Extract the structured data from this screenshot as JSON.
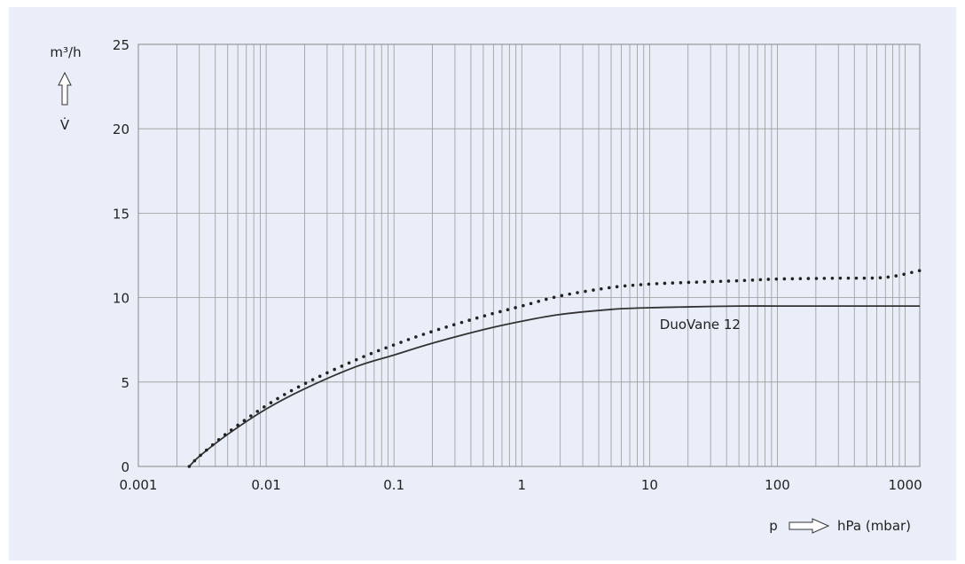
{
  "chart_data": {
    "type": "line",
    "x_scale": "log",
    "xlim": [
      0.001,
      1300
    ],
    "ylim": [
      0,
      25
    ],
    "xtick_labels": [
      "0.001",
      "0.01",
      "0.1",
      "1",
      "10",
      "100",
      "1000"
    ],
    "xtick_values": [
      0.001,
      0.01,
      0.1,
      1,
      10,
      100,
      1000
    ],
    "ytick_labels": [
      "0",
      "5",
      "10",
      "15",
      "20",
      "25"
    ],
    "ytick_values": [
      0,
      5,
      10,
      15,
      20,
      25
    ],
    "ylabel_unit": "m³/h",
    "ylabel_symbol": "V̇",
    "xlabel_symbol": "p",
    "xlabel_unit": "hPa (mbar)",
    "grid": true,
    "series": [
      {
        "name": "DuoVane 12",
        "style": "solid",
        "color": "#333333",
        "x": [
          0.0025,
          0.003,
          0.005,
          0.01,
          0.02,
          0.05,
          0.1,
          0.2,
          0.5,
          1,
          2,
          5,
          10,
          20,
          50,
          100,
          300,
          1300
        ],
        "y": [
          0,
          0.6,
          1.9,
          3.4,
          4.6,
          5.9,
          6.6,
          7.3,
          8.1,
          8.6,
          9.0,
          9.3,
          9.4,
          9.45,
          9.5,
          9.5,
          9.5,
          9.5
        ]
      },
      {
        "name": "",
        "style": "dotted",
        "color": "#222222",
        "x": [
          0.0025,
          0.003,
          0.005,
          0.01,
          0.02,
          0.05,
          0.1,
          0.2,
          0.5,
          1,
          2,
          5,
          10,
          20,
          50,
          100,
          300,
          700,
          1300
        ],
        "y": [
          0,
          0.6,
          2.0,
          3.6,
          4.9,
          6.3,
          7.2,
          8.0,
          8.9,
          9.5,
          10.1,
          10.6,
          10.8,
          10.9,
          11.0,
          11.1,
          11.15,
          11.2,
          11.6
        ]
      }
    ],
    "annotations": [
      {
        "text": "DuoVane 12",
        "x": 12,
        "y": 8.3
      }
    ]
  }
}
